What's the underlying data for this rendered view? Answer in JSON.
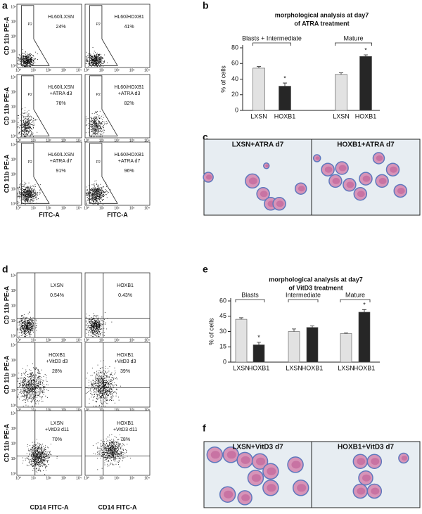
{
  "panel_letters": [
    "a",
    "b",
    "c",
    "d",
    "e",
    "f"
  ],
  "flow_a": {
    "y_label": "CD 11b PE-A",
    "x_label": "FITC-A",
    "ticks": [
      "10⁰",
      "10¹",
      "10²",
      "10³",
      "10⁴"
    ],
    "plots": [
      {
        "lines": [
          "HL60/LXSN"
        ],
        "percent": "24%",
        "gate": "P2"
      },
      {
        "lines": [
          "HL60/HOXB1"
        ],
        "percent": "41%",
        "gate": "P2"
      },
      {
        "lines": [
          "HL60/LXSN",
          "+ATRA d3"
        ],
        "percent": "76%",
        "gate": "P2"
      },
      {
        "lines": [
          "HL60/HOXB1",
          "+ATRA d3"
        ],
        "percent": "82%",
        "gate": "P2"
      },
      {
        "lines": [
          "HL60/LXSN",
          "+ATRA d7"
        ],
        "percent": "91%",
        "gate": "P2"
      },
      {
        "lines": [
          "HL60/HOXB1",
          "+ATRA d7"
        ],
        "percent": "96%",
        "gate": "P2"
      }
    ]
  },
  "flow_d": {
    "y_label": "CD 11b PE-A",
    "x_label": "CD14 FITC-A",
    "ticks": [
      "10⁰",
      "10¹",
      "10²",
      "10³",
      "10⁴"
    ],
    "plots": [
      {
        "lines": [
          "LXSN"
        ],
        "percent": "0.54%"
      },
      {
        "lines": [
          "HOXB1"
        ],
        "percent": "0.43%"
      },
      {
        "lines": [
          "HOXB1",
          "+VitD3 d3"
        ],
        "percent": "28%"
      },
      {
        "lines": [
          "HOXB1",
          "+VitD3 d3"
        ],
        "percent": "39%"
      },
      {
        "lines": [
          "LXSN",
          "+VitD3 d11"
        ],
        "percent": "70%"
      },
      {
        "lines": [
          "HOXB1",
          "+VitD3 d11"
        ],
        "percent": "78%"
      }
    ]
  },
  "micro_c": {
    "labels": [
      "LXSN+ATRA d7",
      "HOXB1+ATRA d7"
    ]
  },
  "micro_f": {
    "labels": [
      "LXSN+VitD3 d7",
      "HOXB1+VitD3 d7"
    ]
  },
  "chart_data": [
    {
      "type": "bar",
      "title": "morphological analysis at day7",
      "subtitle": "of ATRA treatment",
      "group_labels": [
        "Blasts + Intermediate",
        "Mature"
      ],
      "categories": [
        "LXSN",
        "HOXB1",
        "LXSN",
        "HOXB1"
      ],
      "values": [
        54,
        31,
        46,
        69
      ],
      "errors": [
        2,
        4,
        2,
        2
      ],
      "colors": [
        "#e2e2e2",
        "#262626",
        "#e2e2e2",
        "#262626"
      ],
      "significance": [
        null,
        "*",
        null,
        "*"
      ],
      "ylabel": "% of cells",
      "ylim": [
        0,
        80
      ],
      "yticks": [
        0,
        20,
        40,
        60,
        80
      ]
    },
    {
      "type": "bar",
      "title": "morphological analysis at day7",
      "subtitle": "of VitD3 treatment",
      "group_labels": [
        "Blasts",
        "Intermediate",
        "Mature"
      ],
      "categories": [
        "LXSN",
        "HOXB1",
        "LXSN",
        "HOXB1",
        "LXSN",
        "HOXB1"
      ],
      "values": [
        42,
        17,
        30,
        34,
        28,
        49
      ],
      "errors": [
        1.5,
        2.5,
        2.5,
        1.5,
        0.7,
        2.5
      ],
      "colors": [
        "#e2e2e2",
        "#262626",
        "#e2e2e2",
        "#262626",
        "#e2e2e2",
        "#262626"
      ],
      "significance": [
        null,
        "*",
        null,
        null,
        null,
        "*"
      ],
      "ylabel": "% of cells",
      "ylim": [
        0,
        60
      ],
      "yticks": [
        0,
        15,
        30,
        45,
        60
      ]
    }
  ]
}
